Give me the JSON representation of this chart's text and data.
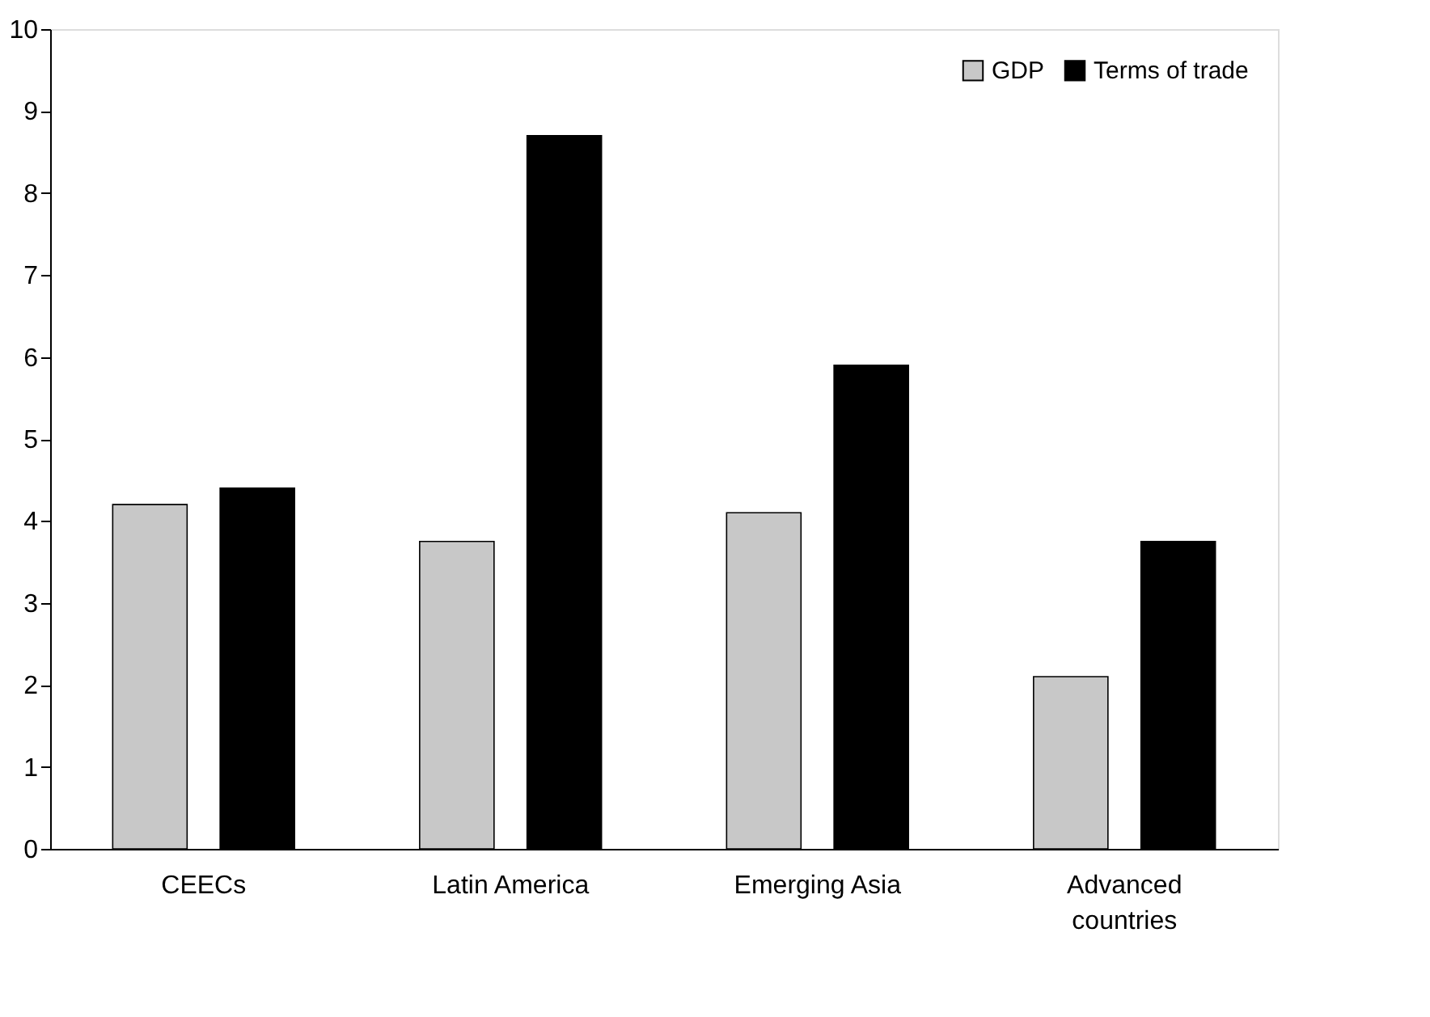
{
  "chart_data": {
    "type": "bar",
    "categories": [
      "CEECs",
      "Latin America",
      "Emerging Asia",
      "Advanced countries"
    ],
    "series": [
      {
        "name": "GDP",
        "color": "#c8c8c8",
        "values": [
          4.2,
          3.75,
          4.1,
          2.1
        ]
      },
      {
        "name": "Terms of trade",
        "color": "#000000",
        "values": [
          4.4,
          8.7,
          5.9,
          3.75
        ]
      }
    ],
    "ylim": [
      0,
      10
    ],
    "yticks": [
      0,
      1,
      2,
      3,
      4,
      5,
      6,
      7,
      8,
      9,
      10
    ],
    "grid": false,
    "legend": "top right"
  }
}
